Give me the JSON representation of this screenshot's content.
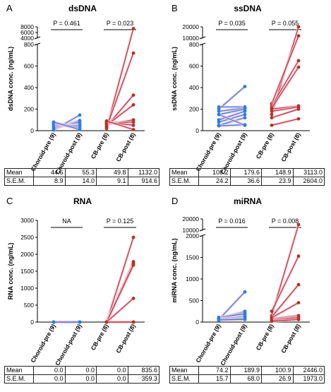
{
  "chart_data": [
    {
      "panel_letter": "A",
      "type": "line",
      "title": "dsDNA",
      "ylabel": "dsDNA conc. (ng/mL)",
      "categories": [
        "Choroid-pre (9)",
        "Choroid-post (9)",
        "CB-pre (8)",
        "CB-post (8)"
      ],
      "ylim_lower": [
        0,
        800
      ],
      "lower_ticks": [
        "0",
        "200",
        "400",
        "600",
        "800"
      ],
      "ylim_upper": [
        4000,
        8000
      ],
      "upper_ticks": [
        "4000",
        "6000",
        "8000"
      ],
      "p_values": [
        {
          "pair": [
            0,
            1
          ],
          "label": "P = 0.461"
        },
        {
          "pair": [
            2,
            3
          ],
          "label": "P = 0.023"
        }
      ],
      "series": [
        {
          "color": "#2b7ce0",
          "pairs": [
            [
              5,
              145
            ],
            [
              15,
              95
            ],
            [
              25,
              80
            ],
            [
              35,
              60
            ],
            [
              45,
              55
            ],
            [
              55,
              45
            ],
            [
              65,
              40
            ],
            [
              75,
              25
            ],
            [
              80,
              10
            ]
          ]
        },
        {
          "color": "#b8302a",
          "pairs": [
            [
              20,
              7400
            ],
            [
              30,
              720
            ],
            [
              40,
              330
            ],
            [
              50,
              240
            ],
            [
              60,
              100
            ],
            [
              70,
              80
            ],
            [
              80,
              50
            ],
            [
              90,
              10
            ]
          ]
        }
      ],
      "stats": {
        "rows": [
          {
            "label": "Mean",
            "values": [
              "44.6",
              "55.3",
              "49.8",
              "1132.0"
            ]
          },
          {
            "label": "S.E.M.",
            "values": [
              "8.9",
              "14.0",
              "9.1",
              "914.6"
            ]
          }
        ]
      }
    },
    {
      "panel_letter": "B",
      "type": "line",
      "title": "ssDNA",
      "ylabel": "ssDNA conc. (ng/mL)",
      "categories": [
        "Choroid-pre (9)",
        "Choroid-post (9)",
        "CB-pre (8)",
        "CB-post (8)"
      ],
      "ylim_lower": [
        0,
        800
      ],
      "lower_ticks": [
        "0",
        "200",
        "400",
        "600",
        "800"
      ],
      "ylim_upper": [
        10000,
        20000
      ],
      "upper_ticks": [
        "10000",
        "20000"
      ],
      "p_values": [
        {
          "pair": [
            0,
            1
          ],
          "label": "P = 0.035"
        },
        {
          "pair": [
            2,
            3
          ],
          "label": "P = 0.055"
        }
      ],
      "series": [
        {
          "color": "#2b7ce0",
          "pairs": [
            [
              200,
              410
            ],
            [
              220,
              220
            ],
            [
              180,
              210
            ],
            [
              150,
              200
            ],
            [
              100,
              180
            ],
            [
              80,
              150
            ],
            [
              50,
              120
            ],
            [
              45,
              55
            ],
            [
              150,
              50
            ]
          ]
        },
        {
          "color": "#b8302a",
          "pairs": [
            [
              150,
              20000
            ],
            [
              250,
              12000
            ],
            [
              230,
              650
            ],
            [
              210,
              590
            ],
            [
              200,
              230
            ],
            [
              180,
              220
            ],
            [
              120,
              200
            ],
            [
              50,
              110
            ]
          ]
        }
      ],
      "stats": {
        "rows": [
          {
            "label": "Mean",
            "values": [
              "108.2",
              "179.6",
              "148.9",
              "3113.0"
            ]
          },
          {
            "label": "S.E.M.",
            "values": [
              "24.2",
              "36.6",
              "23.9",
              "2604.0"
            ]
          }
        ]
      }
    },
    {
      "panel_letter": "C",
      "type": "line",
      "title": "RNA",
      "ylabel": "RNA conc. (ng/mL)",
      "categories": [
        "Choroid-pre (9)",
        "Choroid-post (9)",
        "CB-pre (8)",
        "CB-post (8)"
      ],
      "ylim_lower": [
        0,
        3000
      ],
      "lower_ticks": [
        "0",
        "500",
        "1000",
        "1500",
        "2000",
        "2500",
        "3000"
      ],
      "p_values": [
        {
          "pair": [
            0,
            1
          ],
          "label": "NA"
        },
        {
          "pair": [
            2,
            3
          ],
          "label": "P = 0.125"
        }
      ],
      "series": [
        {
          "color": "#2b7ce0",
          "pairs": [
            [
              0,
              0
            ],
            [
              0,
              0
            ],
            [
              0,
              0
            ],
            [
              0,
              0
            ],
            [
              0,
              0
            ],
            [
              0,
              0
            ],
            [
              0,
              0
            ],
            [
              0,
              0
            ],
            [
              0,
              0
            ]
          ]
        },
        {
          "color": "#b8302a",
          "pairs": [
            [
              0,
              2500
            ],
            [
              0,
              1780
            ],
            [
              0,
              1720
            ],
            [
              0,
              1680
            ],
            [
              0,
              700
            ],
            [
              0,
              0
            ],
            [
              0,
              0
            ],
            [
              0,
              0
            ]
          ]
        }
      ],
      "stats": {
        "rows": [
          {
            "label": "Mean",
            "values": [
              "0.0",
              "0.0",
              "0.0",
              "835.6"
            ]
          },
          {
            "label": "S.E.M.",
            "values": [
              "0.0",
              "0.0",
              "0.0",
              "359.3"
            ]
          }
        ]
      }
    },
    {
      "panel_letter": "D",
      "type": "line",
      "title": "miRNA",
      "ylabel": "miRNA conc. (ng/mL)",
      "categories": [
        "Choroid-pre (9)",
        "Choroid-post (9)",
        "CB-pre (8)",
        "CB-post (8)"
      ],
      "ylim_lower": [
        0,
        2000
      ],
      "lower_ticks": [
        "0",
        "500",
        "1000",
        "1500",
        "2000"
      ],
      "ylim_upper": [
        10000,
        20000
      ],
      "upper_ticks": [
        "10000",
        "20000"
      ],
      "p_values": [
        {
          "pair": [
            0,
            1
          ],
          "label": "P = 0.016"
        },
        {
          "pair": [
            2,
            3
          ],
          "label": "P = 0.008"
        }
      ],
      "series": [
        {
          "color": "#2b7ce0",
          "pairs": [
            [
              60,
              700
            ],
            [
              80,
              250
            ],
            [
              100,
              220
            ],
            [
              110,
              190
            ],
            [
              40,
              150
            ],
            [
              90,
              120
            ],
            [
              70,
              100
            ],
            [
              60,
              80
            ],
            [
              50,
              60
            ]
          ]
        },
        {
          "color": "#b8302a",
          "pairs": [
            [
              150,
              15000
            ],
            [
              250,
              1530
            ],
            [
              120,
              870
            ],
            [
              100,
              450
            ],
            [
              80,
              150
            ],
            [
              60,
              120
            ],
            [
              40,
              100
            ],
            [
              20,
              60
            ]
          ]
        }
      ],
      "stats": {
        "rows": [
          {
            "label": "Mean",
            "values": [
              "74.2",
              "189.9",
              "100.9",
              "2446.0"
            ]
          },
          {
            "label": "S.E.M.",
            "values": [
              "15.7",
              "68.0",
              "26.9",
              "1973.0"
            ]
          }
        ]
      }
    }
  ]
}
